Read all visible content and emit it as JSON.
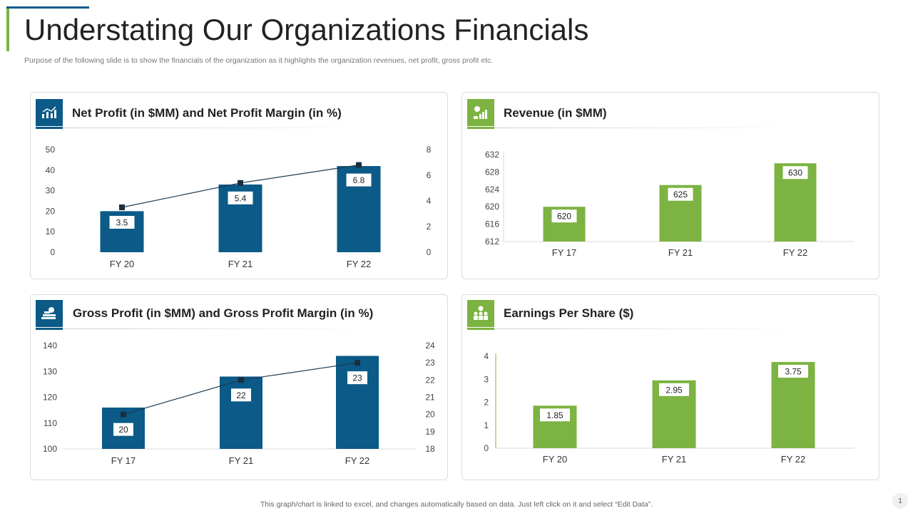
{
  "page": {
    "title": "Understating Our Organizations Financials",
    "subtitle": "Purpose of the following slide is to show the financials of the organization as it highlights the organization revenues, net profit, gross profit etc.",
    "footer": "This graph/chart is linked to excel, and changes automatically based on data. Just left click on it and select “Edit Data”.",
    "page_number": "1",
    "colors": {
      "blue": "#0b5a87",
      "green": "#7cb342"
    }
  },
  "panels": {
    "net_profit": {
      "title": "Net Profit (in $MM) and Net Profit Margin (in %)",
      "icon": "growth-chart-icon"
    },
    "revenue": {
      "title": "Revenue (in $MM)",
      "icon": "money-bars-icon"
    },
    "gross_profit": {
      "title": "Gross Profit (in $MM) and Gross Profit Margin (in %)",
      "icon": "cash-stack-icon"
    },
    "eps": {
      "title": "Earnings Per Share ($)",
      "icon": "people-dollar-icon"
    }
  },
  "chart_data": [
    {
      "id": "net_profit",
      "type": "bar",
      "title": "Net Profit (in $MM) and Net Profit Margin (in %)",
      "categories": [
        "FY 20",
        "FY 21",
        "FY 22"
      ],
      "series": [
        {
          "name": "Net Profit (in $MM)",
          "type": "bar",
          "values": [
            20,
            33,
            42
          ]
        },
        {
          "name": "Net Profit Margin (in %)",
          "type": "line",
          "axis": "right",
          "values": [
            3.5,
            5.4,
            6.8
          ]
        }
      ],
      "data_labels": [
        "3.5",
        "5.4",
        "6.8"
      ],
      "y_left": {
        "min": 0,
        "max": 50,
        "ticks": [
          "0",
          "10",
          "20",
          "30",
          "40",
          "50"
        ]
      },
      "y_right": {
        "min": 0,
        "max": 8,
        "ticks": [
          "0",
          "2",
          "4",
          "6",
          "8"
        ]
      }
    },
    {
      "id": "revenue",
      "type": "bar",
      "title": "Revenue (in $MM)",
      "categories": [
        "FY 17",
        "FY 21",
        "FY 22"
      ],
      "series": [
        {
          "name": "Revenue (in $MM)",
          "type": "bar",
          "values": [
            620,
            625,
            630
          ]
        }
      ],
      "data_labels": [
        "620",
        "625",
        "630"
      ],
      "y_left": {
        "min": 612,
        "max": 632,
        "ticks": [
          "612",
          "616",
          "620",
          "624",
          "628",
          "632"
        ]
      }
    },
    {
      "id": "gross_profit",
      "type": "bar",
      "title": "Gross Profit (in $MM) and Gross Profit Margin (in %)",
      "categories": [
        "FY 17",
        "FY 21",
        "FY 22"
      ],
      "series": [
        {
          "name": "Gross Profit (in $MM)",
          "type": "bar",
          "values": [
            116,
            128,
            136
          ]
        },
        {
          "name": "Gross Profit Margin (in %)",
          "type": "line",
          "axis": "right",
          "values": [
            20,
            22,
            23
          ]
        }
      ],
      "data_labels": [
        "20",
        "22",
        "23"
      ],
      "y_left": {
        "min": 100,
        "max": 140,
        "ticks": [
          "100",
          "110",
          "120",
          "130",
          "140"
        ]
      },
      "y_right": {
        "min": 18,
        "max": 24,
        "ticks": [
          "18",
          "19",
          "20",
          "21",
          "22",
          "23",
          "24"
        ]
      }
    },
    {
      "id": "eps",
      "type": "bar",
      "title": "Earnings Per Share ($)",
      "categories": [
        "FY 20",
        "FY 21",
        "FY 22"
      ],
      "series": [
        {
          "name": "Earnings Per Share ($)",
          "type": "bar",
          "values": [
            1.85,
            2.95,
            3.75
          ]
        }
      ],
      "data_labels": [
        "1.85",
        "2.95",
        "3.75"
      ],
      "y_left": {
        "min": 0,
        "max": 4,
        "ticks": [
          "0",
          "1",
          "2",
          "3",
          "4"
        ]
      }
    }
  ]
}
